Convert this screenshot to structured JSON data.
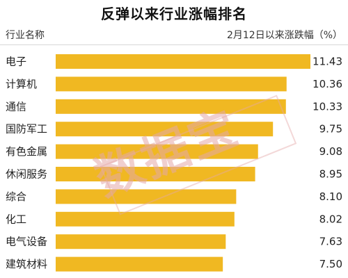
{
  "header": {
    "title": "反弹以来行业涨幅排名",
    "category_header": "行业名称",
    "value_header": "2月12日以来涨跌幅（%）"
  },
  "watermark": {
    "text": "数据宝"
  },
  "colors": {
    "bar": "#F0B822",
    "divider": "#D7D7D7",
    "watermark": "#E5A8A8"
  },
  "chart_data": {
    "type": "bar",
    "orientation": "horizontal",
    "title": "反弹以来行业涨幅排名",
    "xlabel": "2月12日以来涨跌幅（%）",
    "ylabel": "行业名称",
    "categories": [
      "电子",
      "计算机",
      "通信",
      "国防军工",
      "有色金属",
      "休闲服务",
      "综合",
      "化工",
      "电气设备",
      "建筑材料"
    ],
    "values": [
      11.43,
      10.36,
      10.33,
      9.75,
      9.08,
      8.95,
      8.1,
      8.02,
      7.63,
      7.5
    ],
    "value_labels": [
      "11.43",
      "10.36",
      "10.33",
      "9.75",
      "9.08",
      "8.95",
      "8.10",
      "8.02",
      "7.63",
      "7.50"
    ],
    "xlim": [
      0,
      11.43
    ],
    "grid": false,
    "legend": "none"
  }
}
